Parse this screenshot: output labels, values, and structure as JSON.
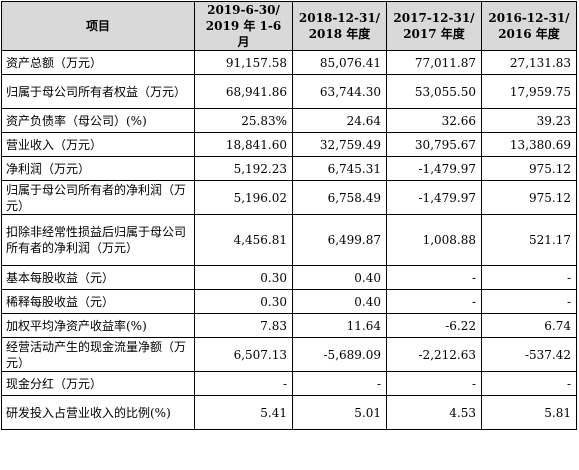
{
  "table": {
    "headers": [
      "项目",
      "2019-6-30/\n2019 年 1-6 月",
      "2018-12-31/\n2018 年度",
      "2017-12-31/\n2017 年度",
      "2016-12-31/\n2016 年度"
    ],
    "rows": [
      {
        "label": "资产总额（万元）",
        "values": [
          "91,157.58",
          "85,076.41",
          "77,011.87",
          "27,131.83"
        ],
        "size": "r1"
      },
      {
        "label": "归属于母公司所有者权益（万元）",
        "values": [
          "68,941.86",
          "63,744.30",
          "53,055.50",
          "17,959.75"
        ],
        "size": "r2"
      },
      {
        "label": "资产负债率（母公司）(%)",
        "values": [
          "25.83%",
          "24.64",
          "32.66",
          "39.23"
        ],
        "size": "r1"
      },
      {
        "label": "营业收入（万元）",
        "values": [
          "18,841.60",
          "32,759.49",
          "30,795.67",
          "13,380.69"
        ],
        "size": "r1"
      },
      {
        "label": "净利润（万元）",
        "values": [
          "5,192.23",
          "6,745.31",
          "-1,479.97",
          "975.12"
        ],
        "size": "r1"
      },
      {
        "label": "归属于母公司所有者的净利润（万元）",
        "values": [
          "5,196.02",
          "6,758.49",
          "-1,479.97",
          "975.12"
        ],
        "size": "r2"
      },
      {
        "label": "扣除非经常性损益后归属于母公司所有者的净利润（万元）",
        "values": [
          "4,456.81",
          "6,499.87",
          "1,008.88",
          "521.17"
        ],
        "size": "r3"
      },
      {
        "label": "基本每股收益（元）",
        "values": [
          "0.30",
          "0.40",
          "-",
          "-"
        ],
        "size": "r1"
      },
      {
        "label": "稀释每股收益（元）",
        "values": [
          "0.30",
          "0.40",
          "-",
          "-"
        ],
        "size": "r1"
      },
      {
        "label": "加权平均净资产收益率(%)",
        "values": [
          "7.83",
          "11.64",
          "-6.22",
          "6.74"
        ],
        "size": "r1"
      },
      {
        "label": "经营活动产生的现金流量净额（万元）",
        "values": [
          "6,507.13",
          "-5,689.09",
          "-2,212.63",
          "-537.42"
        ],
        "size": "r2"
      },
      {
        "label": "现金分红（万元）",
        "values": [
          "-",
          "-",
          "-",
          "-"
        ],
        "size": "r1"
      },
      {
        "label": "研发投入占营业收入的比例(%)",
        "values": [
          "5.41",
          "5.01",
          "4.53",
          "5.81"
        ],
        "size": "r2"
      }
    ]
  }
}
